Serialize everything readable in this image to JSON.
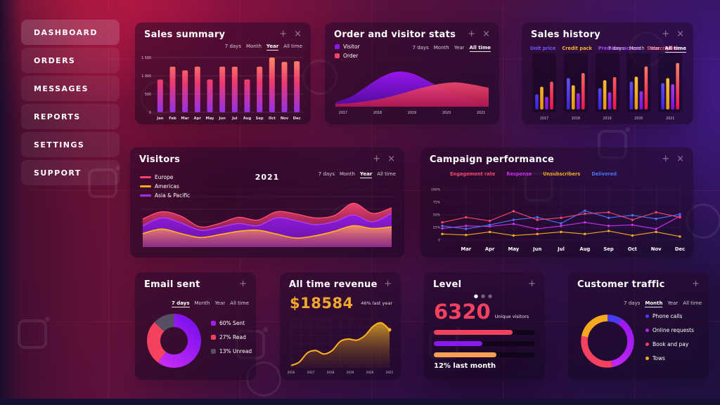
{
  "ui": {
    "plus": "+",
    "close": "×",
    "dot": "●"
  },
  "sidebar": {
    "items": [
      {
        "label": "DASHBOARD",
        "active": true
      },
      {
        "label": "ORDERS",
        "active": false
      },
      {
        "label": "MESSAGES",
        "active": false
      },
      {
        "label": "REPORTS",
        "active": false
      },
      {
        "label": "SETTINGS",
        "active": false
      },
      {
        "label": "SUPPORT",
        "active": false
      }
    ]
  },
  "panels": {
    "sales_summary": {
      "title": "Sales summary",
      "filters": [
        "7 days",
        "Month",
        "Year",
        "All time"
      ],
      "active_filter": "Year",
      "chart_data": {
        "type": "bar",
        "categories": [
          "Jan",
          "Feb",
          "Mar",
          "Apr",
          "May",
          "Jun",
          "Jul",
          "Aug",
          "Sep",
          "Oct",
          "Nov",
          "Dec"
        ],
        "values": [
          900,
          1250,
          1150,
          1250,
          900,
          1250,
          1250,
          900,
          1250,
          1500,
          1380,
          1400
        ],
        "ylim": [
          0,
          1500
        ],
        "yticks": [
          [
            0,
            "0"
          ],
          [
            500,
            "500"
          ],
          [
            1000,
            "1 000"
          ],
          [
            1500,
            "1 500"
          ]
        ],
        "bar_gradient": [
          "#ff8a65",
          "#ec3a6e",
          "#9430e8"
        ]
      }
    },
    "order_visitor_stats": {
      "title": "Order and visitor stats",
      "filters": [
        "7 days",
        "Month",
        "Year",
        "All time"
      ],
      "active_filter": "All time",
      "legend": [
        {
          "label": "Visitor",
          "color": "#8a16e8"
        },
        {
          "label": "Order",
          "color": "#f4456a"
        }
      ],
      "chart_data": {
        "type": "area",
        "x_labels": [
          "2017",
          "2018",
          "2019",
          "2020",
          "2021"
        ],
        "ylim": [
          0,
          100
        ],
        "series": [
          {
            "name": "Visitor",
            "gradient": [
              "#9b16f0",
              "#4f0b9e"
            ],
            "values": [
              10,
              22,
              44,
              66,
              78,
              74,
              58,
              40,
              25,
              14,
              8
            ]
          },
          {
            "name": "Order",
            "gradient": [
              "#f64b72",
              "#b5174b"
            ],
            "values": [
              6,
              8,
              12,
              18,
              26,
              36,
              45,
              52,
              54,
              49,
              42
            ]
          }
        ]
      }
    },
    "sales_history": {
      "title": "Sales history",
      "filters": [
        "7 days",
        "Month",
        "Year",
        "All time"
      ],
      "active_filter": "All time",
      "legend": [
        {
          "label": "Unit price",
          "color": "#6c5bff"
        },
        {
          "label": "Credit pack",
          "color": "#f5b32a"
        },
        {
          "label": "Premium access",
          "color": "#a946f5"
        },
        {
          "label": "Subscription",
          "color": "#f4466e"
        }
      ],
      "chart_data": {
        "type": "bar",
        "categories": [
          "2017",
          "2018",
          "2019",
          "2020",
          "2021"
        ],
        "ylim": [
          0,
          100
        ],
        "series": [
          {
            "name": "Unit price",
            "gradient": [
              "#7a6cff",
              "#3a25d8"
            ],
            "values": [
              30,
              62,
              42,
              55,
              52
            ]
          },
          {
            "name": "Credit pack",
            "gradient": [
              "#ffd44d",
              "#e8960f"
            ],
            "values": [
              45,
              48,
              58,
              65,
              62
            ]
          },
          {
            "name": "Premium access",
            "gradient": [
              "#c964ff",
              "#7a12d8"
            ],
            "values": [
              25,
              32,
              34,
              36,
              50
            ]
          },
          {
            "name": "Subscription",
            "gradient": [
              "#ff8666",
              "#ee1150"
            ],
            "values": [
              55,
              72,
              64,
              85,
              92
            ]
          }
        ]
      }
    },
    "visitors": {
      "title": "Visitors",
      "center_label": "2021",
      "filters": [
        "7 days",
        "Month",
        "Year",
        "All time"
      ],
      "active_filter": "Year",
      "legend": [
        {
          "label": "Europe",
          "color": "#f4466e"
        },
        {
          "label": "Americas",
          "color": "#f5a91f"
        },
        {
          "label": "Asia & Pacific",
          "color": "#a22df0"
        }
      ],
      "chart_data": {
        "type": "area",
        "ylim": [
          0,
          100
        ],
        "series": [
          {
            "name": "Europe",
            "stroke": "#ff4d74",
            "fill": [
              "rgba(246,70,112,0.95)",
              "rgba(140,18,84,0.55)"
            ],
            "values": [
              50,
              63,
              55,
              36,
              42,
              53,
              48,
              63,
              59,
              52,
              56,
              78,
              60,
              70
            ]
          },
          {
            "name": "Asia & Pacific",
            "stroke": "#b43bff",
            "fill": [
              "rgba(141,28,224,0.95)",
              "rgba(105,15,180,0.9)"
            ],
            "values": [
              38,
              52,
              43,
              30,
              35,
              42,
              38,
              52,
              47,
              40,
              45,
              57,
              45,
              60
            ]
          },
          {
            "name": "Americas",
            "stroke": "#ffb21e",
            "fill": [
              "rgba(250,142,104,0.95)",
              "rgba(205,95,80,0.35)"
            ],
            "values": [
              24,
              32,
              24,
              17,
              22,
              28,
              30,
              23,
              16,
              20,
              28,
              38,
              33,
              36
            ]
          }
        ]
      }
    },
    "campaign_performance": {
      "title": "Campaign performance",
      "legend": [
        {
          "label": "Engagement rate",
          "color": "#f4466e"
        },
        {
          "label": "Response",
          "color": "#cb2df5"
        },
        {
          "label": "Unsubscribers",
          "color": "#f5a91f"
        },
        {
          "label": "Delivered",
          "color": "#4a72f5"
        }
      ],
      "chart_data": {
        "type": "line",
        "x_labels": [
          "Mar",
          "Apr",
          "May",
          "Jun",
          "Jul",
          "Aug",
          "Sep",
          "Oct",
          "Nov",
          "Dec"
        ],
        "ylim": [
          0,
          100
        ],
        "yticks": [
          [
            0,
            "0"
          ],
          [
            25,
            "25%"
          ],
          [
            50,
            "50%"
          ],
          [
            75,
            "75%"
          ],
          [
            100,
            "100%"
          ]
        ],
        "series": [
          {
            "name": "Engagement rate",
            "color": "#f4466e",
            "values": [
              35,
              45,
              38,
              57,
              40,
              44,
              52,
              55,
              40,
              55,
              45
            ]
          },
          {
            "name": "Response",
            "color": "#cb2df5",
            "values": [
              23,
              28,
              27,
              32,
              22,
              28,
              35,
              28,
              30,
              22,
              47
            ]
          },
          {
            "name": "Unsubscribers",
            "color": "#f5a91f",
            "values": [
              12,
              10,
              16,
              9,
              12,
              16,
              12,
              18,
              9,
              16,
              7
            ]
          },
          {
            "name": "Delivered",
            "color": "#4a72f5",
            "values": [
              28,
              22,
              30,
              40,
              45,
              33,
              58,
              44,
              49,
              42,
              51
            ]
          }
        ]
      }
    },
    "email_sent": {
      "title": "Email sent",
      "filters": [
        "7 days",
        "Month",
        "Year",
        "All time"
      ],
      "active_filter": "7 days",
      "chart_data": {
        "type": "pie",
        "slices": [
          {
            "label": "60% Sent",
            "value": 60,
            "color": "#9a22f0",
            "gradient": [
              "#cb2df5",
              "#7c10ee"
            ]
          },
          {
            "label": "27% Read",
            "value": 27,
            "color": "#f4415f"
          },
          {
            "label": "13% Unread",
            "value": 13,
            "color": "#564e63"
          }
        ]
      }
    },
    "all_time_revenue": {
      "title": "All time revenue",
      "amount": "$18584",
      "note": "46% last year",
      "chart_data": {
        "type": "area",
        "x_labels": [
          "2016",
          "2017",
          "2018",
          "2019",
          "2020",
          "2021"
        ],
        "ylim": [
          0,
          100
        ],
        "series": [
          {
            "name": "Revenue",
            "stroke": "#ffb31f",
            "fill": [
              "rgba(214,158,38,0.9)",
              "rgba(110,60,25,0.12)"
            ],
            "values": [
              4,
              10,
              26,
              30,
              24,
              30,
              46,
              50,
              48,
              56,
              72,
              78,
              66
            ]
          }
        ]
      }
    },
    "level": {
      "title": "Level",
      "dots": 3,
      "value": "6320",
      "value_label": "Unique visitors",
      "note": "12% last month",
      "bars": [
        {
          "color": "#f4415f",
          "percent": 78
        },
        {
          "color": "#8b17f2",
          "percent": 48
        },
        {
          "color": "#f5a154",
          "percent": 62
        }
      ]
    },
    "customer_traffic": {
      "title": "Customer traffic",
      "filters": [
        "7 days",
        "Month",
        "Year",
        "All time"
      ],
      "active_filter": "Month",
      "chart_data": {
        "type": "pie",
        "slices": [
          {
            "label": "Phone calls",
            "value": 9,
            "color": "#4a3df0"
          },
          {
            "label": "Online requests",
            "value": 38,
            "color": "#b026f0",
            "gradient": [
              "#d22df5",
              "#9516f0"
            ]
          },
          {
            "label": "Book and pay",
            "value": 31,
            "color": "#f4415f"
          },
          {
            "label": "Tows",
            "value": 22,
            "color": "#f5a91f"
          }
        ]
      }
    }
  }
}
